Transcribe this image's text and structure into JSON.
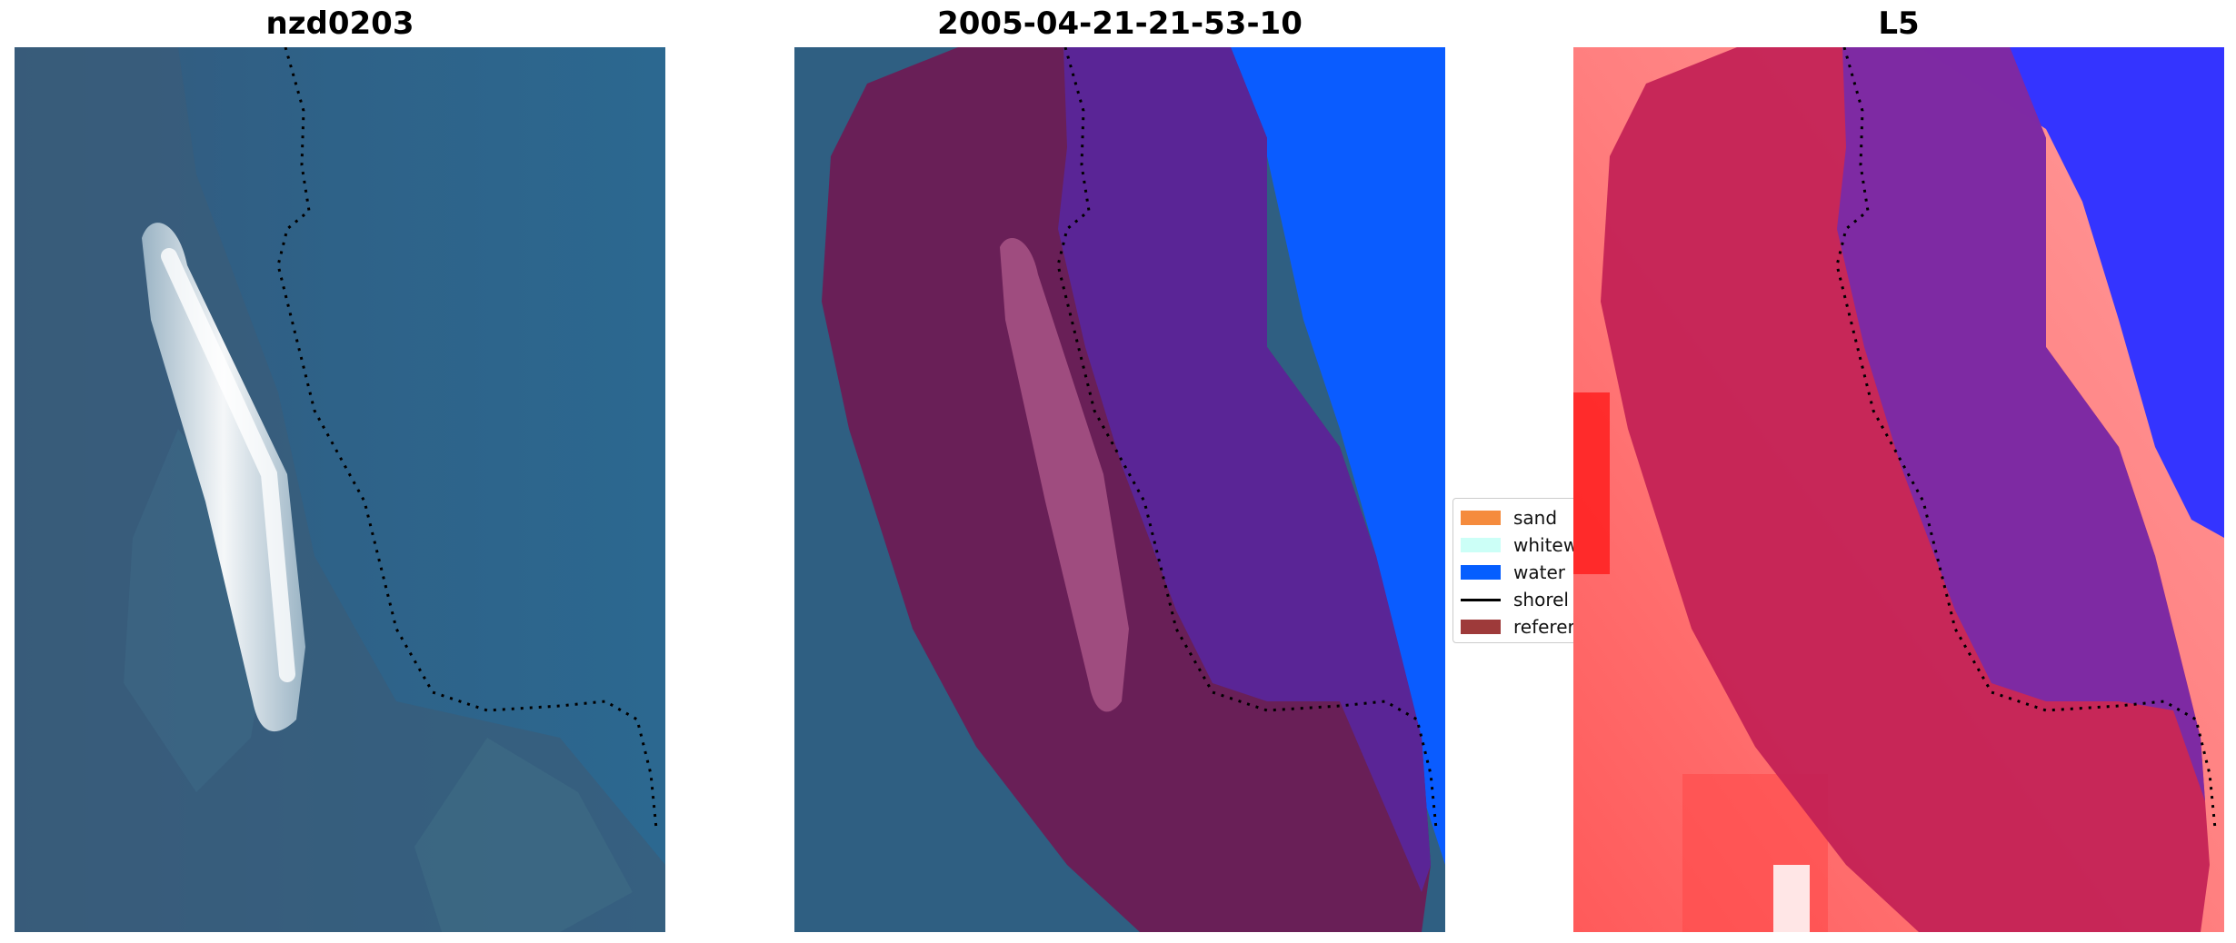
{
  "panels": [
    {
      "title": "nzd0203"
    },
    {
      "title": "2005-04-21-21-53-10"
    },
    {
      "title": "L5"
    }
  ],
  "legend": {
    "items": [
      {
        "label": "sand",
        "color": "#f58b3d"
      },
      {
        "label": "whitew",
        "color": "#ccfff7"
      },
      {
        "label": "water",
        "color": "#055eff"
      },
      {
        "label": "shorel",
        "color": "#000000"
      },
      {
        "label": "referer",
        "color": "#9e3a3a"
      }
    ]
  },
  "colors": {
    "ocean": "#2f6287",
    "reference_overlay": "#6d1c54",
    "water_class": "#0a5cff",
    "classified_water": "#5a2596",
    "index_red": "#ff3b3b",
    "index_magenta": "#c21f55",
    "index_blue": "#2b2bff"
  }
}
